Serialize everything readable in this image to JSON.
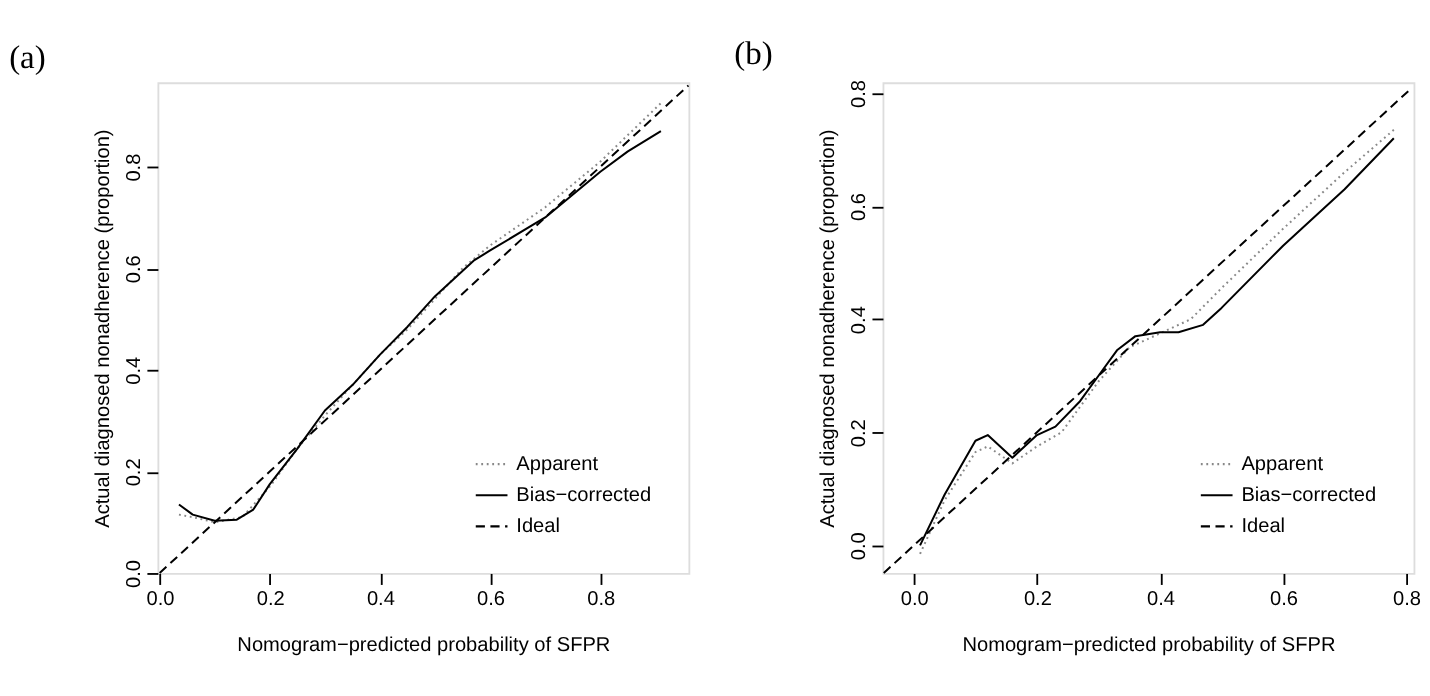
{
  "chart_data": [
    {
      "type": "line",
      "title": "(a)",
      "xlabel": "Nomogram−predicted probability of SFPR",
      "ylabel": "Actual diagnosed nonadherence (proportion)",
      "xlim": [
        -0.004,
        0.96
      ],
      "ylim": [
        0,
        0.966
      ],
      "xticks": [
        {
          "value": 0,
          "label": "0.0"
        },
        0.2,
        0.4,
        0.6,
        0.8
      ],
      "yticks": [
        {
          "value": 0,
          "label": "0.0"
        },
        0.2,
        0.4,
        0.6,
        0.8
      ],
      "grid": false,
      "legend": "bottom right",
      "marker": "none",
      "series": [
        {
          "name": "Apparent",
          "color": "#888888",
          "line_style": "dotted",
          "x": [
            0.035,
            0.06,
            0.1,
            0.15,
            0.2,
            0.25,
            0.3,
            0.35,
            0.4,
            0.45,
            0.5,
            0.55,
            0.6,
            0.7,
            0.8,
            0.91
          ],
          "values": [
            0.115,
            0.11,
            0.1,
            0.11,
            0.17,
            0.245,
            0.31,
            0.37,
            0.43,
            0.48,
            0.54,
            0.6,
            0.645,
            0.72,
            0.81,
            0.925
          ]
        },
        {
          "name": "Bias−corrected",
          "color": "#000000",
          "line_style": "solid",
          "x": [
            0.035,
            0.06,
            0.1,
            0.14,
            0.17,
            0.2,
            0.25,
            0.3,
            0.35,
            0.4,
            0.45,
            0.5,
            0.57,
            0.6,
            0.7,
            0.8,
            0.85,
            0.91
          ],
          "values": [
            0.135,
            0.115,
            0.103,
            0.105,
            0.125,
            0.175,
            0.245,
            0.32,
            0.37,
            0.43,
            0.485,
            0.545,
            0.615,
            0.635,
            0.7,
            0.79,
            0.83,
            0.87
          ]
        },
        {
          "name": "Ideal",
          "color": "#000000",
          "line_style": "dashed",
          "x": [
            0,
            0.96
          ],
          "values": [
            0,
            0.96
          ]
        }
      ]
    },
    {
      "type": "line",
      "title": "(b)",
      "xlabel": "Nomogram−predicted probability of SFPR",
      "ylabel": "Actual diagnosed nonadherence (proportion)",
      "xlim": [
        -0.051,
        0.812
      ],
      "ylim": [
        -0.049,
        0.819
      ],
      "xticks": [
        {
          "value": 0,
          "label": "0.0"
        },
        0.2,
        0.4,
        0.6,
        0.8
      ],
      "yticks": [
        {
          "value": 0,
          "label": "0.0"
        },
        0.2,
        0.4,
        0.6,
        0.8
      ],
      "grid": false,
      "legend": "bottom right",
      "marker": "none",
      "series": [
        {
          "name": "Apparent",
          "color": "#888888",
          "line_style": "dotted",
          "x": [
            0.01,
            0.05,
            0.1,
            0.12,
            0.16,
            0.2,
            0.24,
            0.3,
            0.35,
            0.4,
            0.45,
            0.5,
            0.6,
            0.7,
            0.78
          ],
          "values": [
            -0.015,
            0.08,
            0.165,
            0.175,
            0.145,
            0.175,
            0.2,
            0.29,
            0.35,
            0.375,
            0.4,
            0.455,
            0.56,
            0.66,
            0.735
          ]
        },
        {
          "name": "Bias−corrected",
          "color": "#000000",
          "line_style": "solid",
          "x": [
            0.01,
            0.05,
            0.1,
            0.12,
            0.16,
            0.2,
            0.23,
            0.27,
            0.3,
            0.33,
            0.36,
            0.4,
            0.43,
            0.47,
            0.5,
            0.6,
            0.7,
            0.78
          ],
          "values": [
            0.0,
            0.09,
            0.185,
            0.195,
            0.155,
            0.195,
            0.21,
            0.255,
            0.3,
            0.345,
            0.37,
            0.377,
            0.377,
            0.39,
            0.42,
            0.53,
            0.63,
            0.72
          ]
        },
        {
          "name": "Ideal",
          "color": "#000000",
          "line_style": "dashed",
          "x": [
            -0.049,
            0.81
          ],
          "values": [
            -0.049,
            0.81
          ]
        }
      ]
    }
  ]
}
